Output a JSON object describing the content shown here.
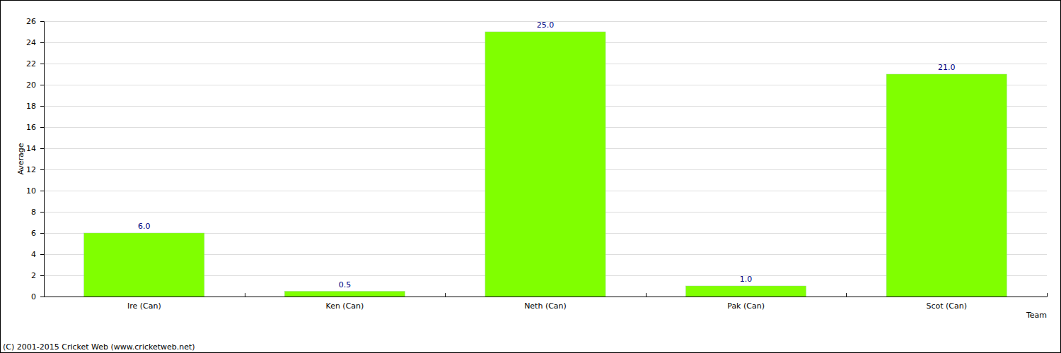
{
  "chart_data": {
    "type": "bar",
    "x_label": "Team",
    "y_label": "Average",
    "annotations": [
      "(C) 2001-2015 Cricket Web (www.cricketweb.net)"
    ],
    "categories": [
      "Ire (Can)",
      "Ken (Can)",
      "Neth (Can)",
      "Pak (Can)",
      "Scot (Can)"
    ],
    "values": [
      6,
      0.5,
      25,
      1,
      21
    ],
    "value_labels": [
      "6.0",
      "0.5",
      "25.0",
      "1.0",
      "21.0"
    ],
    "data_labels": true,
    "color": "#80ff00",
    "ylim": [
      0,
      26
    ],
    "yticks": [
      0,
      2,
      4,
      6,
      8,
      10,
      12,
      14,
      16,
      18,
      20,
      22,
      24,
      26
    ],
    "grid": true
  }
}
